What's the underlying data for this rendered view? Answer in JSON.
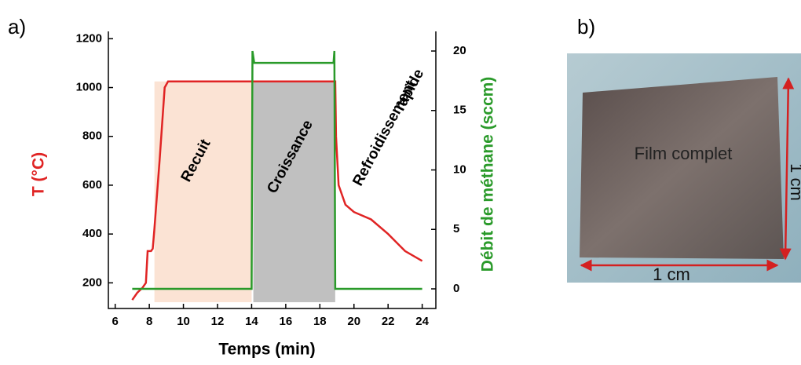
{
  "chart_data": {
    "type": "line",
    "panel_labels": [
      "a)",
      "b)"
    ],
    "xlabel": "Temps (min)",
    "ylabel": "T (°C)",
    "y2label": "Débit de méthane (sccm)",
    "xlim": [
      5.6,
      24.8
    ],
    "xticks": [
      6,
      8,
      10,
      12,
      14,
      16,
      18,
      20,
      22,
      24
    ],
    "ylim": [
      95,
      1230
    ],
    "yticks": [
      200,
      400,
      600,
      800,
      1000,
      1200
    ],
    "y2lim": [
      -1.65,
      21.65
    ],
    "y2ticks": [
      0,
      5,
      10,
      15,
      20
    ],
    "regions": [
      {
        "label": "Recuit",
        "start": 8.3,
        "end": 14,
        "top": 1025,
        "color": "#fbe3d4"
      },
      {
        "label": "Croissance",
        "start": 14.1,
        "end": 18.9,
        "top": 1025,
        "color": "#c0c0c0"
      }
    ],
    "annotations": [
      "Refroidissement",
      "rapide"
    ],
    "series": [
      {
        "name": "T",
        "color": "#e02424",
        "x": [
          7.0,
          7.3,
          7.6,
          7.8,
          7.9,
          8.1,
          8.2,
          8.3,
          8.6,
          8.9,
          9.1,
          14,
          18.9,
          18.95,
          19.1,
          19.5,
          20,
          21,
          22,
          23,
          24
        ],
        "values": [
          130,
          160,
          180,
          200,
          330,
          330,
          340,
          420,
          700,
          1000,
          1025,
          1025,
          1025,
          800,
          600,
          520,
          490,
          460,
          400,
          330,
          290
        ]
      },
      {
        "name": "Débit",
        "color": "#2a9a2a",
        "axis": "y2",
        "x": [
          7,
          14,
          14.05,
          14.15,
          18.8,
          18.85,
          18.9,
          24
        ],
        "values": [
          0,
          0,
          20,
          19,
          19,
          20,
          0,
          0
        ]
      }
    ],
    "photo": {
      "caption": "Film complet",
      "width_label": "1 cm",
      "height_label": "1 cm"
    }
  }
}
